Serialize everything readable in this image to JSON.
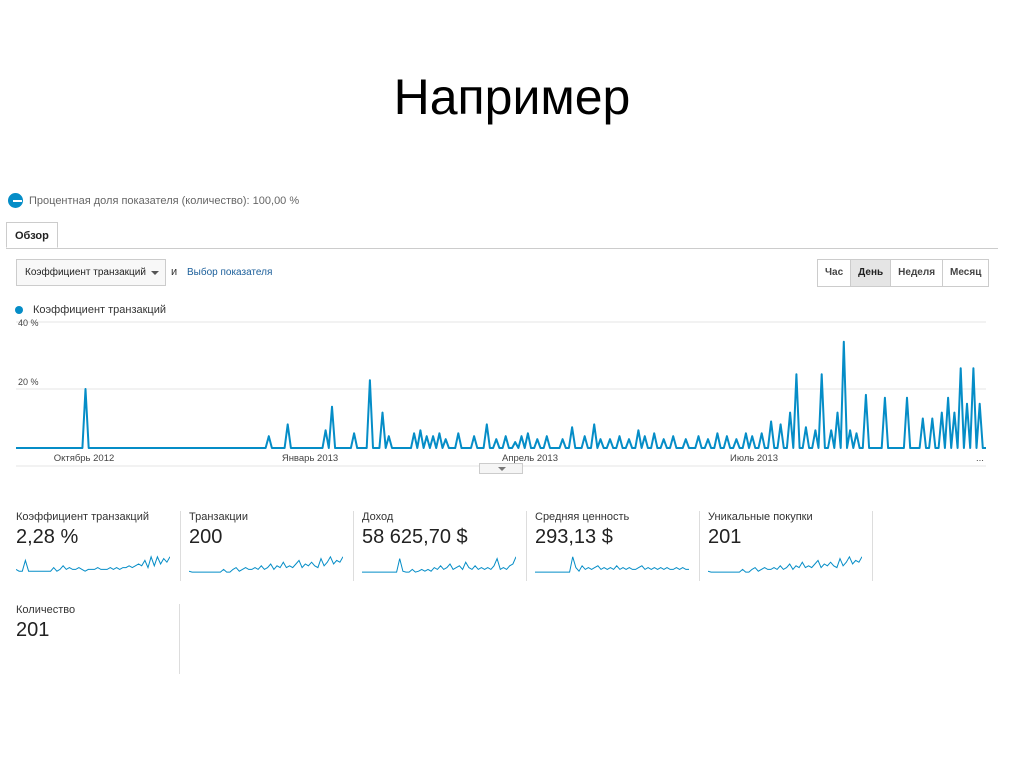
{
  "slide": {
    "title": "Например"
  },
  "segment": {
    "label": "Процентная доля показателя (количество): 100,00 %"
  },
  "tabs": [
    {
      "label": "Обзор"
    }
  ],
  "controls": {
    "metric_select": "Коэффициент транзакций",
    "and_label": "и",
    "choose_metric_link": "Выбор показателя",
    "granularity": [
      "Час",
      "День",
      "Неделя",
      "Месяц"
    ],
    "active_granularity": "День"
  },
  "legend": {
    "series_name": "Коэффициент транзакций"
  },
  "colors": {
    "accent": "#058dc7",
    "link": "#1a5e9a",
    "grid": "#e5e5e5"
  },
  "chart_data": {
    "type": "line",
    "title": "",
    "series": [
      {
        "name": "Коэффициент транзакций"
      }
    ],
    "y_ticks": [
      "40 %",
      "20 %"
    ],
    "ylim": [
      0,
      40
    ],
    "grid": true,
    "x_tick_labels": [
      "Октябрь 2012",
      "Январь 2013",
      "Апрель 2013",
      "Июль 2013",
      "..."
    ],
    "spikes": [
      {
        "day": 22,
        "value": 20
      },
      {
        "day": 80,
        "value": 4
      },
      {
        "day": 86,
        "value": 8
      },
      {
        "day": 98,
        "value": 6
      },
      {
        "day": 100,
        "value": 14
      },
      {
        "day": 107,
        "value": 5
      },
      {
        "day": 112,
        "value": 23
      },
      {
        "day": 116,
        "value": 12
      },
      {
        "day": 118,
        "value": 4
      },
      {
        "day": 126,
        "value": 5
      },
      {
        "day": 128,
        "value": 6
      },
      {
        "day": 130,
        "value": 4
      },
      {
        "day": 132,
        "value": 4
      },
      {
        "day": 134,
        "value": 5
      },
      {
        "day": 136,
        "value": 3
      },
      {
        "day": 140,
        "value": 5
      },
      {
        "day": 145,
        "value": 4
      },
      {
        "day": 149,
        "value": 8
      },
      {
        "day": 152,
        "value": 3
      },
      {
        "day": 155,
        "value": 4
      },
      {
        "day": 158,
        "value": 2
      },
      {
        "day": 160,
        "value": 4
      },
      {
        "day": 162,
        "value": 5
      },
      {
        "day": 165,
        "value": 3
      },
      {
        "day": 168,
        "value": 4
      },
      {
        "day": 173,
        "value": 3
      },
      {
        "day": 176,
        "value": 7
      },
      {
        "day": 180,
        "value": 4
      },
      {
        "day": 183,
        "value": 8
      },
      {
        "day": 185,
        "value": 3
      },
      {
        "day": 188,
        "value": 3
      },
      {
        "day": 191,
        "value": 4
      },
      {
        "day": 194,
        "value": 3
      },
      {
        "day": 197,
        "value": 6
      },
      {
        "day": 199,
        "value": 4
      },
      {
        "day": 202,
        "value": 5
      },
      {
        "day": 205,
        "value": 3
      },
      {
        "day": 208,
        "value": 4
      },
      {
        "day": 212,
        "value": 3
      },
      {
        "day": 216,
        "value": 4
      },
      {
        "day": 219,
        "value": 3
      },
      {
        "day": 222,
        "value": 5
      },
      {
        "day": 225,
        "value": 4
      },
      {
        "day": 228,
        "value": 3
      },
      {
        "day": 231,
        "value": 5
      },
      {
        "day": 233,
        "value": 4
      },
      {
        "day": 236,
        "value": 5
      },
      {
        "day": 239,
        "value": 9
      },
      {
        "day": 242,
        "value": 8
      },
      {
        "day": 245,
        "value": 12
      },
      {
        "day": 247,
        "value": 25
      },
      {
        "day": 250,
        "value": 7
      },
      {
        "day": 253,
        "value": 6
      },
      {
        "day": 255,
        "value": 25
      },
      {
        "day": 258,
        "value": 6
      },
      {
        "day": 260,
        "value": 12
      },
      {
        "day": 262,
        "value": 36
      },
      {
        "day": 264,
        "value": 6
      },
      {
        "day": 266,
        "value": 5
      },
      {
        "day": 269,
        "value": 18
      },
      {
        "day": 275,
        "value": 17
      },
      {
        "day": 282,
        "value": 17
      },
      {
        "day": 287,
        "value": 10
      },
      {
        "day": 290,
        "value": 10
      },
      {
        "day": 293,
        "value": 12
      },
      {
        "day": 295,
        "value": 17
      },
      {
        "day": 297,
        "value": 12
      },
      {
        "day": 299,
        "value": 27
      },
      {
        "day": 301,
        "value": 15
      },
      {
        "day": 303,
        "value": 27
      },
      {
        "day": 305,
        "value": 15
      }
    ]
  },
  "tiles": [
    {
      "name": "Коэффициент транзакций",
      "value": "2,28 %",
      "spark": [
        0.2,
        0.1,
        0.1,
        0.7,
        0.1,
        0.1,
        0.1,
        0.1,
        0.1,
        0.1,
        0.1,
        0.1,
        0.3,
        0.1,
        0.2,
        0.4,
        0.2,
        0.3,
        0.2,
        0.2,
        0.3,
        0.2,
        0.1,
        0.2,
        0.2,
        0.2,
        0.3,
        0.2,
        0.2,
        0.2,
        0.3,
        0.2,
        0.3,
        0.2,
        0.3,
        0.3,
        0.4,
        0.3,
        0.4,
        0.5,
        0.4,
        0.7,
        0.3,
        0.9,
        0.4,
        0.9,
        0.5,
        0.8,
        0.6,
        0.9
      ]
    },
    {
      "name": "Транзакции",
      "value": "200",
      "spark": [
        0.1,
        0.05,
        0.05,
        0.05,
        0.05,
        0.05,
        0.05,
        0.05,
        0.05,
        0.05,
        0.05,
        0.2,
        0.05,
        0.05,
        0.2,
        0.3,
        0.1,
        0.2,
        0.3,
        0.2,
        0.2,
        0.3,
        0.2,
        0.4,
        0.2,
        0.3,
        0.5,
        0.2,
        0.4,
        0.3,
        0.6,
        0.3,
        0.4,
        0.3,
        0.5,
        0.7,
        0.3,
        0.5,
        0.4,
        0.6,
        0.4,
        0.3,
        0.8,
        0.4,
        0.6,
        0.9,
        0.5,
        0.7,
        0.6,
        0.9
      ]
    },
    {
      "name": "Доход",
      "value": "58 625,70 $",
      "spark": [
        0.05,
        0.05,
        0.05,
        0.05,
        0.05,
        0.05,
        0.05,
        0.05,
        0.05,
        0.05,
        0.05,
        0.05,
        0.8,
        0.1,
        0.05,
        0.05,
        0.2,
        0.05,
        0.1,
        0.2,
        0.1,
        0.2,
        0.1,
        0.3,
        0.2,
        0.4,
        0.2,
        0.3,
        0.5,
        0.2,
        0.3,
        0.4,
        0.2,
        0.6,
        0.3,
        0.2,
        0.4,
        0.2,
        0.3,
        0.2,
        0.3,
        0.2,
        0.4,
        0.8,
        0.2,
        0.3,
        0.2,
        0.4,
        0.5,
        0.9
      ]
    },
    {
      "name": "Средняя ценность",
      "value": "293,13 $",
      "spark": [
        0.05,
        0.05,
        0.05,
        0.05,
        0.05,
        0.05,
        0.05,
        0.05,
        0.05,
        0.05,
        0.05,
        0.05,
        0.9,
        0.3,
        0.1,
        0.4,
        0.2,
        0.3,
        0.2,
        0.3,
        0.4,
        0.2,
        0.3,
        0.2,
        0.3,
        0.2,
        0.4,
        0.2,
        0.3,
        0.2,
        0.3,
        0.2,
        0.2,
        0.3,
        0.4,
        0.2,
        0.3,
        0.2,
        0.3,
        0.2,
        0.3,
        0.2,
        0.3,
        0.2,
        0.2,
        0.3,
        0.2,
        0.3,
        0.2,
        0.2
      ]
    },
    {
      "name": "Уникальные покупки",
      "value": "201",
      "spark": [
        0.1,
        0.05,
        0.05,
        0.05,
        0.05,
        0.05,
        0.05,
        0.05,
        0.05,
        0.05,
        0.05,
        0.2,
        0.05,
        0.05,
        0.2,
        0.3,
        0.1,
        0.2,
        0.3,
        0.2,
        0.2,
        0.3,
        0.2,
        0.4,
        0.2,
        0.3,
        0.5,
        0.2,
        0.4,
        0.3,
        0.6,
        0.3,
        0.4,
        0.3,
        0.5,
        0.7,
        0.3,
        0.5,
        0.4,
        0.6,
        0.4,
        0.3,
        0.8,
        0.4,
        0.6,
        0.9,
        0.5,
        0.7,
        0.6,
        0.9
      ]
    },
    {
      "name": "Количество",
      "value": "201"
    }
  ]
}
